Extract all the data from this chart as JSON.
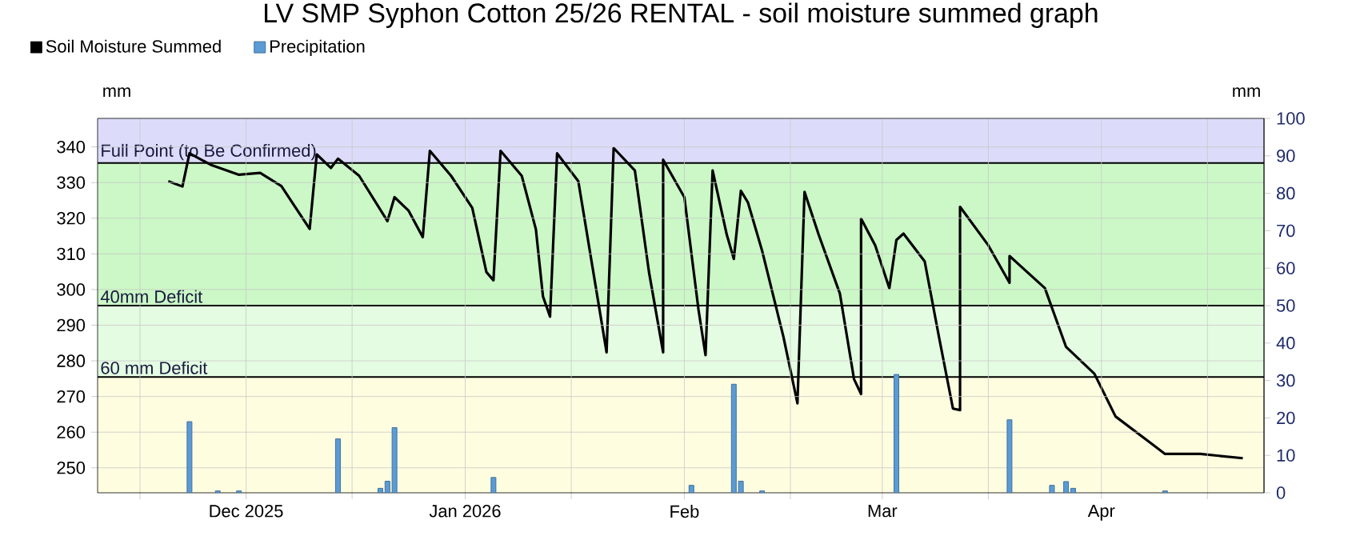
{
  "chart_data": {
    "type": "line",
    "title": "LV SMP Syphon Cotton 25/26 RENTAL - soil moisture summed graph",
    "ylabel": "mm",
    "y2label": "mm",
    "xlim": [
      "2025-11-10",
      "2026-04-24"
    ],
    "xticks": [
      {
        "value": "2025-11-16",
        "label": null
      },
      {
        "value": "2025-12-01",
        "label": "Dec 2025"
      },
      {
        "value": "2025-12-16",
        "label": null
      },
      {
        "value": "2026-01-01",
        "label": "Jan 2026"
      },
      {
        "value": "2026-01-16",
        "label": null
      },
      {
        "value": "2026-02-01",
        "label": "Feb"
      },
      {
        "value": "2026-02-16",
        "label": null
      },
      {
        "value": "2026-03-01",
        "label": "Mar"
      },
      {
        "value": "2026-03-16",
        "label": null
      },
      {
        "value": "2026-04-01",
        "label": "Apr"
      },
      {
        "value": "2026-04-16",
        "label": null
      }
    ],
    "ylim": [
      243,
      348
    ],
    "yticks": [
      250,
      260,
      270,
      280,
      290,
      300,
      310,
      320,
      330,
      340
    ],
    "y2lim": [
      0,
      100
    ],
    "y2ticks": [
      0,
      10,
      20,
      30,
      40,
      50,
      60,
      70,
      80,
      90,
      100
    ],
    "grid": true,
    "legend": "top left",
    "bands": [
      {
        "axis": "y",
        "from": 243,
        "to": 275.5,
        "color": "#fffde0"
      },
      {
        "axis": "y",
        "from": 275.5,
        "to": 295.5,
        "color": "#e4fce2"
      },
      {
        "axis": "y",
        "from": 295.5,
        "to": 335.5,
        "color": "#cbf8c6"
      },
      {
        "axis": "y",
        "from": 335.5,
        "to": 348,
        "color": "#dcdcfa"
      }
    ],
    "ref_lines": [
      {
        "axis": "y",
        "value": 335.5,
        "label": "Full Point (to Be Confirmed)",
        "color": "#000000"
      },
      {
        "axis": "y",
        "value": 295.5,
        "label": "40mm Deficit",
        "color": "#000000"
      },
      {
        "axis": "y",
        "value": 275.5,
        "label": "60 mm Deficit",
        "color": "#000000"
      }
    ],
    "series": [
      {
        "name": "Soil Moisture Summed",
        "axis": "y",
        "color": "#000000",
        "line_style": "solid",
        "x": [
          "2025-11-20",
          "2025-11-22",
          "2025-11-23",
          "2025-11-26",
          "2025-11-30",
          "2025-12-03",
          "2025-12-06",
          "2025-12-10",
          "2025-12-11",
          "2025-12-13",
          "2025-12-14",
          "2025-12-17",
          "2025-12-21",
          "2025-12-22",
          "2025-12-24",
          "2025-12-26",
          "2025-12-27",
          "2025-12-30",
          "2026-01-02",
          "2026-01-04",
          "2026-01-05",
          "2026-01-06",
          "2026-01-09",
          "2026-01-11",
          "2026-01-12",
          "2026-01-13",
          "2026-01-14",
          "2026-01-17",
          "2026-01-19",
          "2026-01-21",
          "2026-01-22",
          "2026-01-25",
          "2026-01-27",
          "2026-01-29",
          "2026-01-29",
          "2026-02-01",
          "2026-02-03",
          "2026-02-04",
          "2026-02-05",
          "2026-02-07",
          "2026-02-08",
          "2026-02-09",
          "2026-02-10",
          "2026-02-12",
          "2026-02-15",
          "2026-02-17",
          "2026-02-18",
          "2026-02-20",
          "2026-02-23",
          "2026-02-25",
          "2026-02-26",
          "2026-02-26",
          "2026-02-28",
          "2026-03-02",
          "2026-03-03",
          "2026-03-04",
          "2026-03-07",
          "2026-03-09",
          "2026-03-11",
          "2026-03-12",
          "2026-03-12",
          "2026-03-16",
          "2026-03-19",
          "2026-03-19",
          "2026-03-24",
          "2026-03-27",
          "2026-03-31",
          "2026-04-03",
          "2026-04-08",
          "2026-04-10",
          "2026-04-15",
          "2026-04-21"
        ],
        "values": [
          330.4,
          328.9,
          338.2,
          335,
          332.2,
          332.7,
          329,
          317,
          337.9,
          334.1,
          336.7,
          331.9,
          319.2,
          325.9,
          322.1,
          314.7,
          338.9,
          331.9,
          322.9,
          304.9,
          302.6,
          338.9,
          331.9,
          316.9,
          298.1,
          292.4,
          338.2,
          330.4,
          306.4,
          282.4,
          339.7,
          333.4,
          304.9,
          282.4,
          336.4,
          325.9,
          294.4,
          281.6,
          333.4,
          315.4,
          308.6,
          327.7,
          324.4,
          310.9,
          286.9,
          268.1,
          327.4,
          315.4,
          298.9,
          274.9,
          270.7,
          319.9,
          312.4,
          300.4,
          313.9,
          315.7,
          307.9,
          286.9,
          266.6,
          266.2,
          323.2,
          312.4,
          301.9,
          309.4,
          300.4,
          283.9,
          276.4,
          264.4,
          256.9,
          253.9,
          253.9,
          252.7
        ]
      },
      {
        "name": "Precipitation",
        "type": "bar",
        "axis": "y2",
        "color": "#5b9bd5",
        "x": [
          "2025-11-23",
          "2025-11-27",
          "2025-11-30",
          "2025-12-14",
          "2025-12-20",
          "2025-12-21",
          "2025-12-22",
          "2026-01-05",
          "2026-02-02",
          "2026-02-08",
          "2026-02-09",
          "2026-02-12",
          "2026-03-03",
          "2026-03-19",
          "2026-03-25",
          "2026-03-27",
          "2026-03-28",
          "2026-04-10"
        ],
        "values": [
          19,
          0.5,
          0.5,
          14.4,
          1.2,
          3.1,
          17.4,
          4.1,
          2,
          29,
          3.1,
          0.5,
          31.6,
          19.5,
          2,
          3,
          1.2,
          0.5
        ]
      }
    ]
  }
}
